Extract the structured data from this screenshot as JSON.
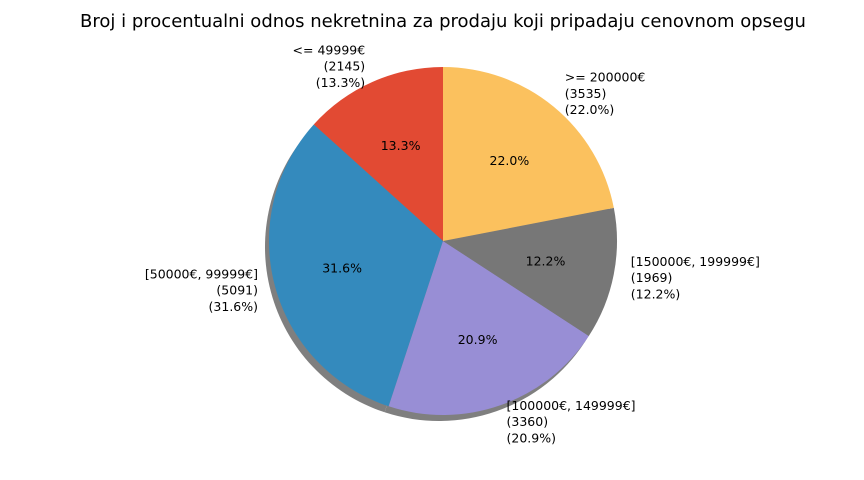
{
  "chart_data": {
    "type": "pie",
    "title": "Broj i procentualni odnos nekretnina za prodaju koji pripadaju cenovnom opsegu",
    "slices": [
      {
        "label": "<= 49999€",
        "count": "(2145)",
        "percent_text": "(13.3%)",
        "inner_label": "13.3%",
        "value": 2145,
        "color": "#e24a33"
      },
      {
        "label": "[50000€, 99999€]",
        "count": "(5091)",
        "percent_text": "(31.6%)",
        "inner_label": "31.6%",
        "value": 5091,
        "color": "#348abd"
      },
      {
        "label": "[100000€, 149999€]",
        "count": "(3360)",
        "percent_text": "(20.9%)",
        "inner_label": "20.9%",
        "value": 3360,
        "color": "#988ed5"
      },
      {
        "label": "[150000€, 199999€]",
        "count": "(1969)",
        "percent_text": "(12.2%)",
        "inner_label": "12.2%",
        "value": 1969,
        "color": "#777777"
      },
      {
        "label": ">= 200000€",
        "count": "(3535)",
        "percent_text": "(22.0%)",
        "inner_label": "22.0%",
        "value": 3535,
        "color": "#fbc15e"
      }
    ],
    "start_angle_deg": 90,
    "direction": "counterclockwise",
    "shadow": true
  }
}
